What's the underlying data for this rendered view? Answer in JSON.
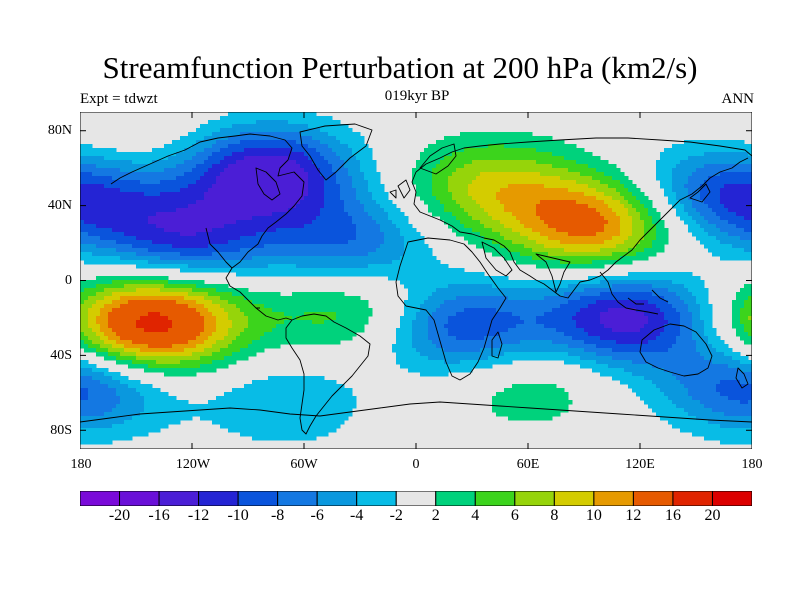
{
  "title": "Streamfunction Perturbation at 200 hPa (km2/s)",
  "left_string": "Expt = tdwzt",
  "center_string": "019kyr BP",
  "right_string": "ANN",
  "lat_labels": [
    "80N",
    "40N",
    "0",
    "40S",
    "80S"
  ],
  "lon_labels": [
    "180",
    "120W",
    "60W",
    "0",
    "60E",
    "120E",
    "180"
  ],
  "colorbar": {
    "labels": [
      "-20",
      "-16",
      "-12",
      "-10",
      "-8",
      "-6",
      "-4",
      "-2",
      "2",
      "4",
      "6",
      "8",
      "10",
      "12",
      "16",
      "20"
    ],
    "colors": [
      "#7a0ad9",
      "#6a10d8",
      "#4b1ed6",
      "#2424d4",
      "#0a54dc",
      "#1478e2",
      "#0a98de",
      "#08bce6",
      "#e6e6e6",
      "#00d27c",
      "#3cd41c",
      "#96d40a",
      "#d4cc00",
      "#e69a00",
      "#e65a00",
      "#e02400",
      "#dc0000"
    ]
  },
  "map": {
    "projection": "cylindrical equidistant",
    "lon_range": [
      -180,
      180
    ],
    "lat_range": [
      -90,
      90
    ],
    "centers": [
      {
        "lon": -80,
        "lat": 57,
        "level": -14
      },
      {
        "lon": -123,
        "lat": 22,
        "level": -10
      },
      {
        "lon": -37,
        "lat": 20,
        "level": -8
      },
      {
        "lon": -172,
        "lat": 43,
        "level": -7
      },
      {
        "lon": 155,
        "lat": 47,
        "level": -6
      },
      {
        "lon": 25,
        "lat": -25,
        "level": -10
      },
      {
        "lon": 112,
        "lat": -20,
        "level": -13
      },
      {
        "lon": -170,
        "lat": -55,
        "level": -6
      },
      {
        "lon": 170,
        "lat": -55,
        "level": -5
      },
      {
        "lon": -70,
        "lat": -65,
        "level": -4
      },
      {
        "lon": 95,
        "lat": 30,
        "level": 13
      },
      {
        "lon": 40,
        "lat": 50,
        "level": 8
      },
      {
        "lon": -135,
        "lat": -20,
        "level": 12
      },
      {
        "lon": -155,
        "lat": -30,
        "level": 8
      },
      {
        "lon": -35,
        "lat": -15,
        "level": 6
      },
      {
        "lon": 60,
        "lat": -55,
        "level": 4
      },
      {
        "lon": -150,
        "lat": 75,
        "level": 2
      }
    ]
  }
}
